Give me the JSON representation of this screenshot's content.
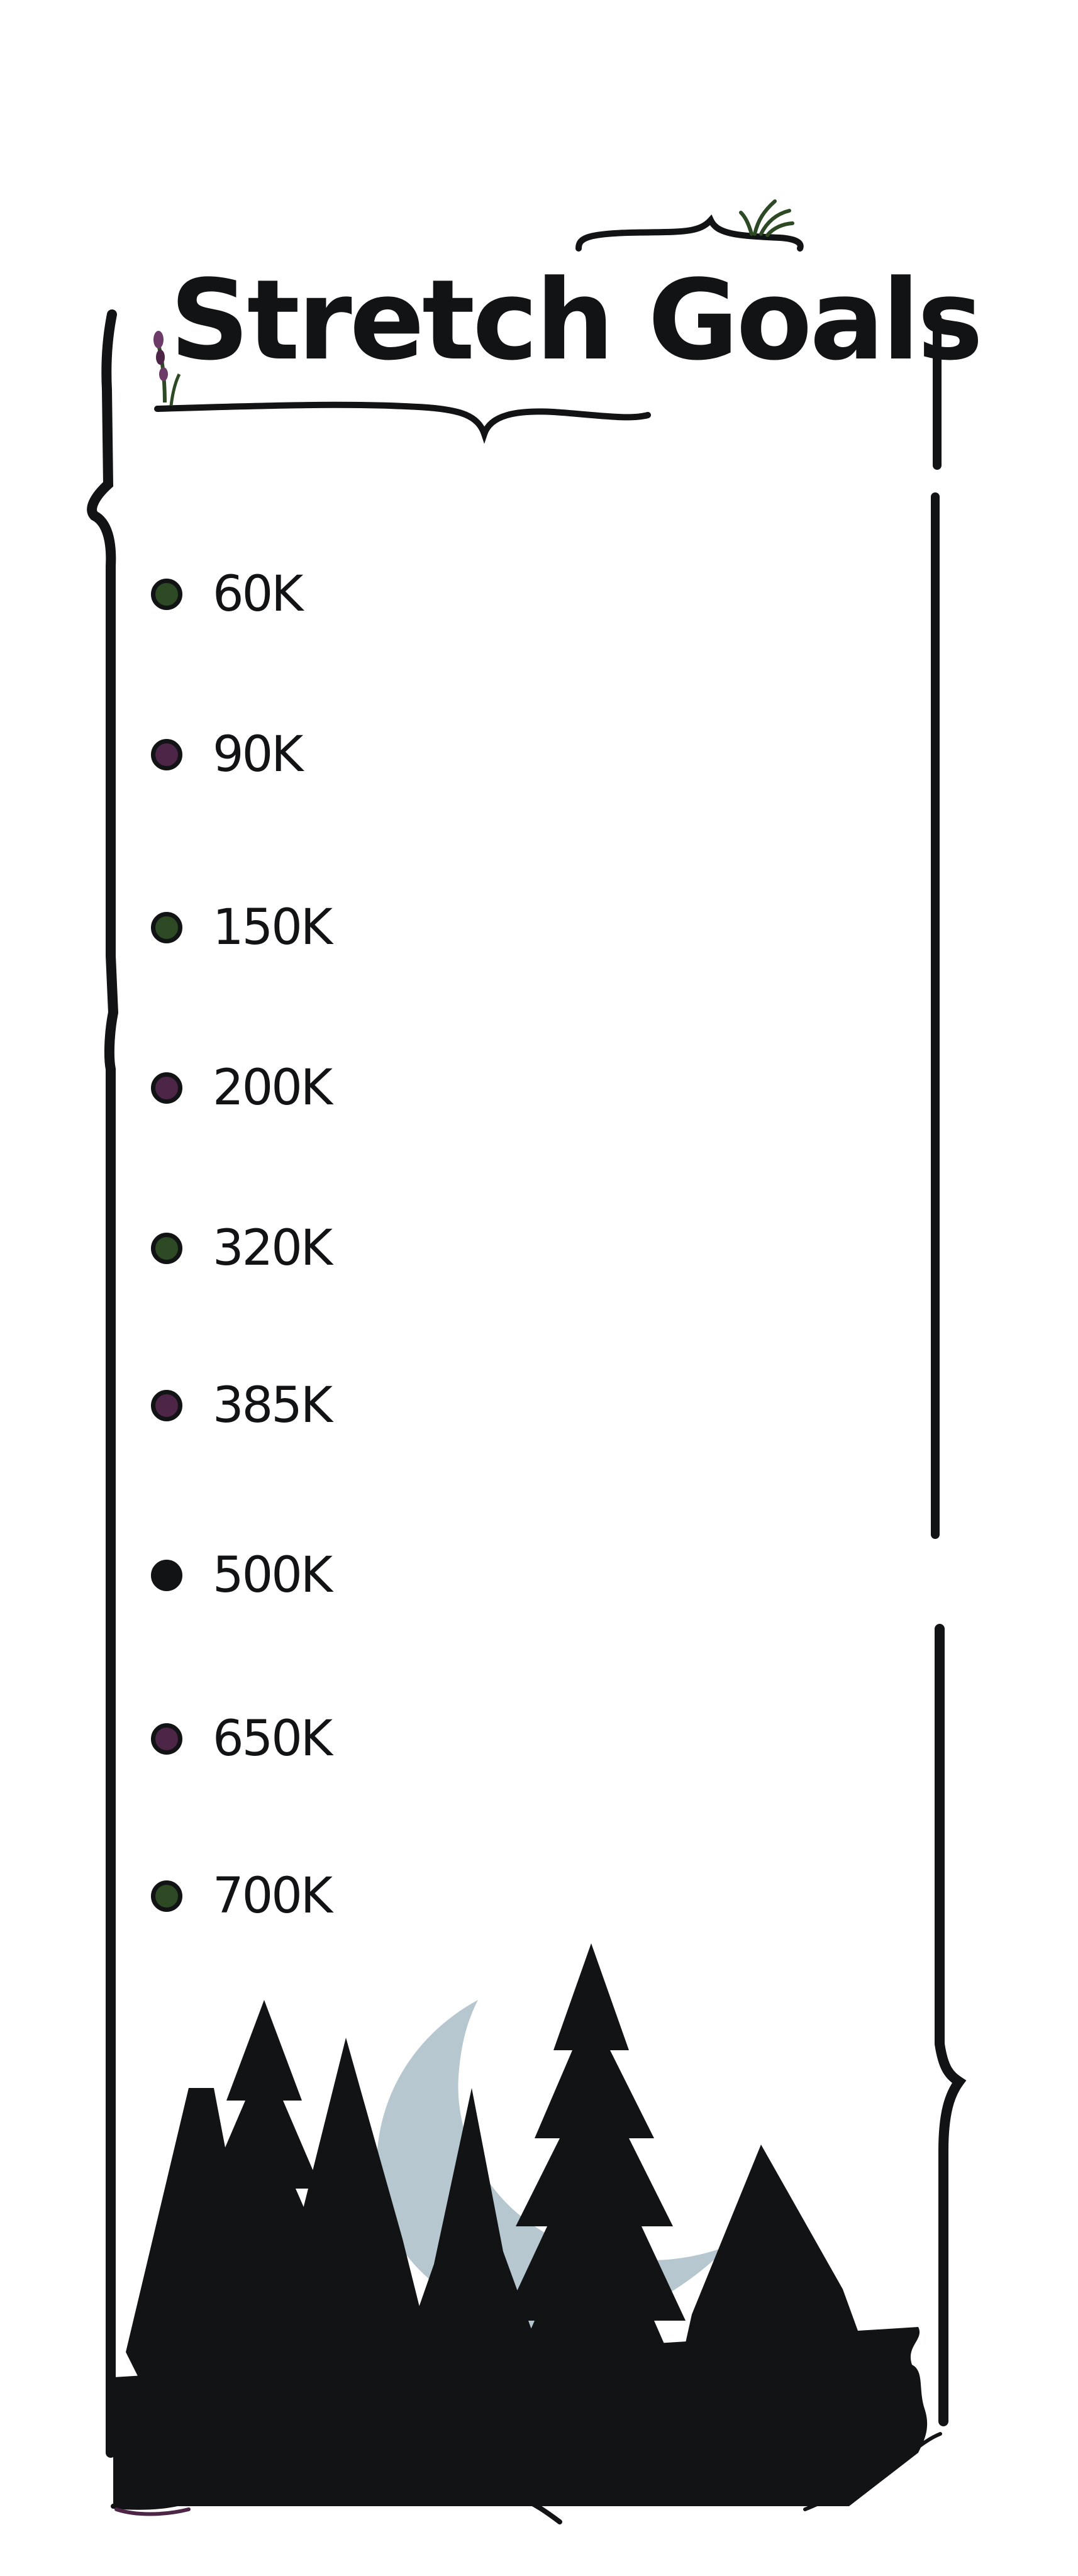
{
  "title": "Stretch Goals",
  "colors": {
    "ink": "#111315",
    "green": "#2d4a25",
    "purple": "#4c2547",
    "gold": "#d9a441",
    "moon": "#b6c7cf"
  },
  "goals": [
    {
      "label": "60K",
      "color": "green"
    },
    {
      "label": "90K",
      "color": "purple"
    },
    {
      "label": "150K",
      "color": "green"
    },
    {
      "label": "200K",
      "color": "purple"
    },
    {
      "label": "320K",
      "color": "green"
    },
    {
      "label": "385K",
      "color": "purple"
    },
    {
      "label": "500K",
      "color": "ink"
    },
    {
      "label": "650K",
      "color": "purple"
    },
    {
      "label": "700K",
      "color": "green"
    }
  ]
}
